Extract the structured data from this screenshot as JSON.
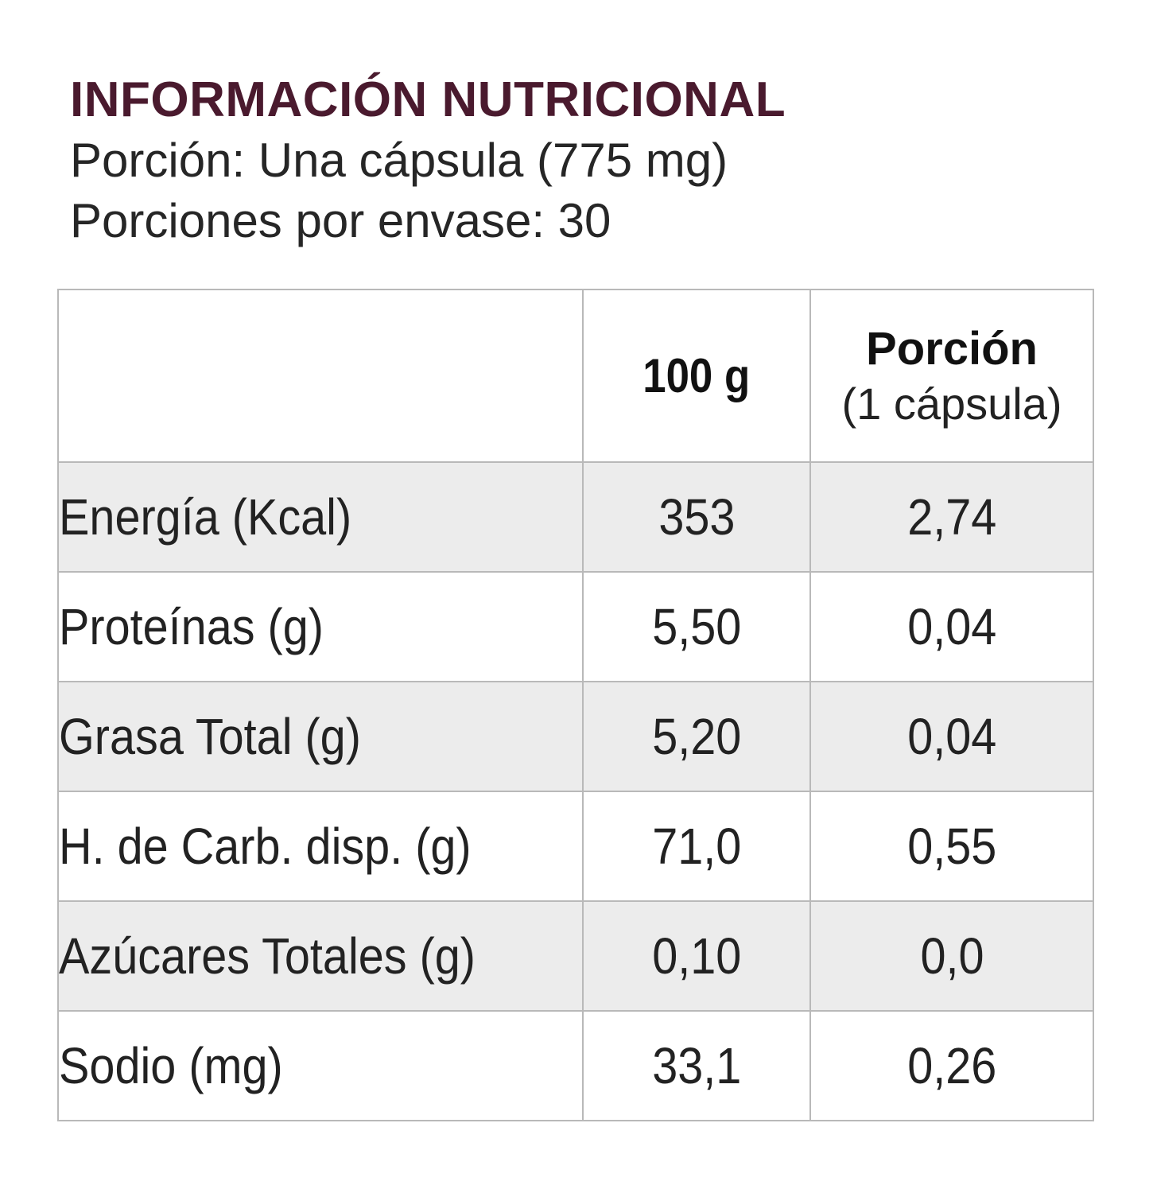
{
  "header": {
    "title": "INFORMACIÓN NUTRICIONAL",
    "serving": "Porción: Una cápsula (775 mg)",
    "servings_per_container": "Porciones por envase: 30"
  },
  "table": {
    "columns": {
      "nutrient": "",
      "per_100g": "100 g",
      "per_portion": "Porción",
      "per_portion_sub": "(1 cápsula)"
    },
    "rows": [
      {
        "label": "Energía (Kcal)",
        "per_100g": "353",
        "per_portion": "2,74"
      },
      {
        "label": "Proteínas (g)",
        "per_100g": "5,50",
        "per_portion": "0,04"
      },
      {
        "label": "Grasa Total (g)",
        "per_100g": "5,20",
        "per_portion": "0,04"
      },
      {
        "label": "H. de Carb. disp. (g)",
        "per_100g": "71,0",
        "per_portion": "0,55"
      },
      {
        "label": "Azúcares Totales (g)",
        "per_100g": "0,10",
        "per_portion": "0,0"
      },
      {
        "label": "Sodio (mg)",
        "per_100g": "33,1",
        "per_portion": "0,26"
      }
    ]
  },
  "colors": {
    "title": "#4a1a2e",
    "row_shade": "#ececec",
    "border": "#b9b9b9"
  }
}
